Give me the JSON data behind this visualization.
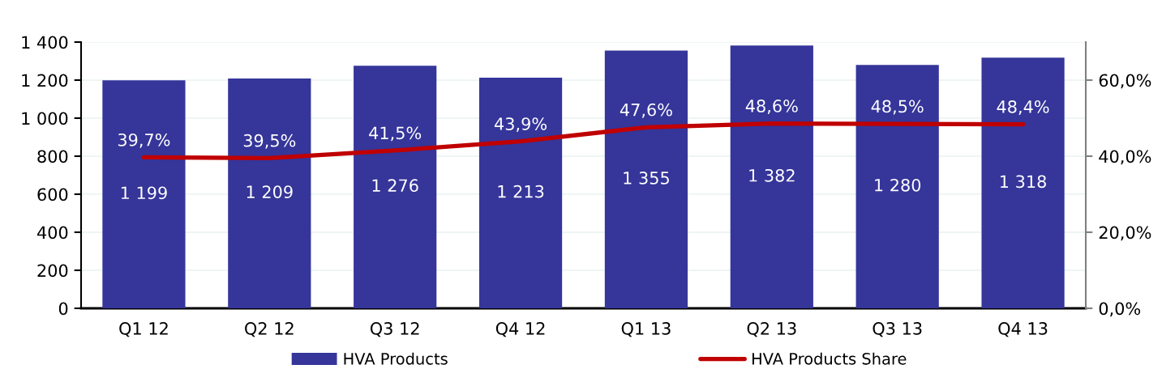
{
  "chart_data": {
    "type": "bar",
    "categories": [
      "Q1 12",
      "Q2 12",
      "Q3 12",
      "Q4 12",
      "Q1 13",
      "Q2 13",
      "Q3 13",
      "Q4 13"
    ],
    "series": [
      {
        "name": "HVA Products",
        "color": "#35359a",
        "values": [
          1199,
          1209,
          1276,
          1213,
          1355,
          1382,
          1280,
          1318
        ],
        "value_labels": [
          "1 199",
          "1 209",
          "1 276",
          "1 213",
          "1 355",
          "1 382",
          "1 280",
          "1 318"
        ]
      },
      {
        "name": "HVA Products Share",
        "type": "line",
        "axis": "y2",
        "color": "#c00000",
        "values": [
          39.7,
          39.5,
          41.5,
          43.9,
          47.6,
          48.6,
          48.5,
          48.4
        ],
        "value_labels": [
          "39,7%",
          "39,5%",
          "41,5%",
          "43,9%",
          "47,6%",
          "48,6%",
          "48,5%",
          "48,4%"
        ]
      }
    ],
    "ylim": [
      0,
      1400
    ],
    "yticks": [
      0,
      200,
      400,
      600,
      800,
      {
        "value": 1000,
        "label": "1 000"
      },
      {
        "value": 1200,
        "label": "1 200"
      },
      {
        "value": 1400,
        "label": "1 400"
      }
    ],
    "y2lim": [
      0,
      70
    ],
    "y2ticks": [
      {
        "value": 0,
        "label": "0,0%"
      },
      {
        "value": 20,
        "label": "20,0%"
      },
      {
        "value": 40,
        "label": "40,0%"
      },
      {
        "value": 60,
        "label": "60,0%"
      }
    ],
    "grid": "y",
    "legend": "bottom"
  }
}
